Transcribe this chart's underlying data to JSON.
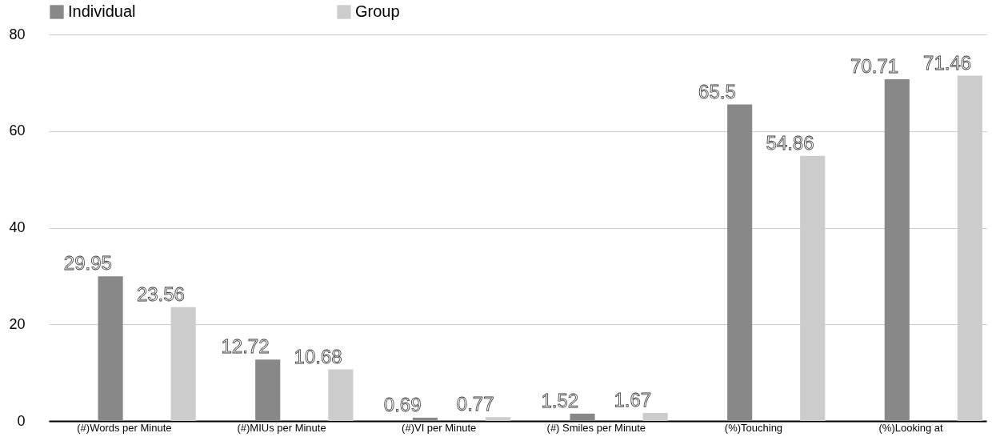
{
  "chart_data": {
    "type": "bar",
    "categories": [
      "(#)Words per Minute",
      "(#)MIUs per Minute",
      "(#)VI per Minute",
      "(#) Smiles per Minute",
      "(%)Touching",
      "(%)Looking at"
    ],
    "series": [
      {
        "name": "Individual",
        "color": "#888888",
        "values": [
          29.95,
          12.72,
          0.69,
          1.52,
          65.5,
          70.71
        ]
      },
      {
        "name": "Group",
        "color": "#cccccc",
        "values": [
          23.56,
          10.68,
          0.77,
          1.67,
          54.86,
          71.46
        ]
      }
    ],
    "ylim": [
      0,
      80
    ],
    "yticks": [
      0,
      20,
      40,
      60,
      80
    ],
    "grid": "y",
    "legend": "top",
    "data_labels": true
  }
}
